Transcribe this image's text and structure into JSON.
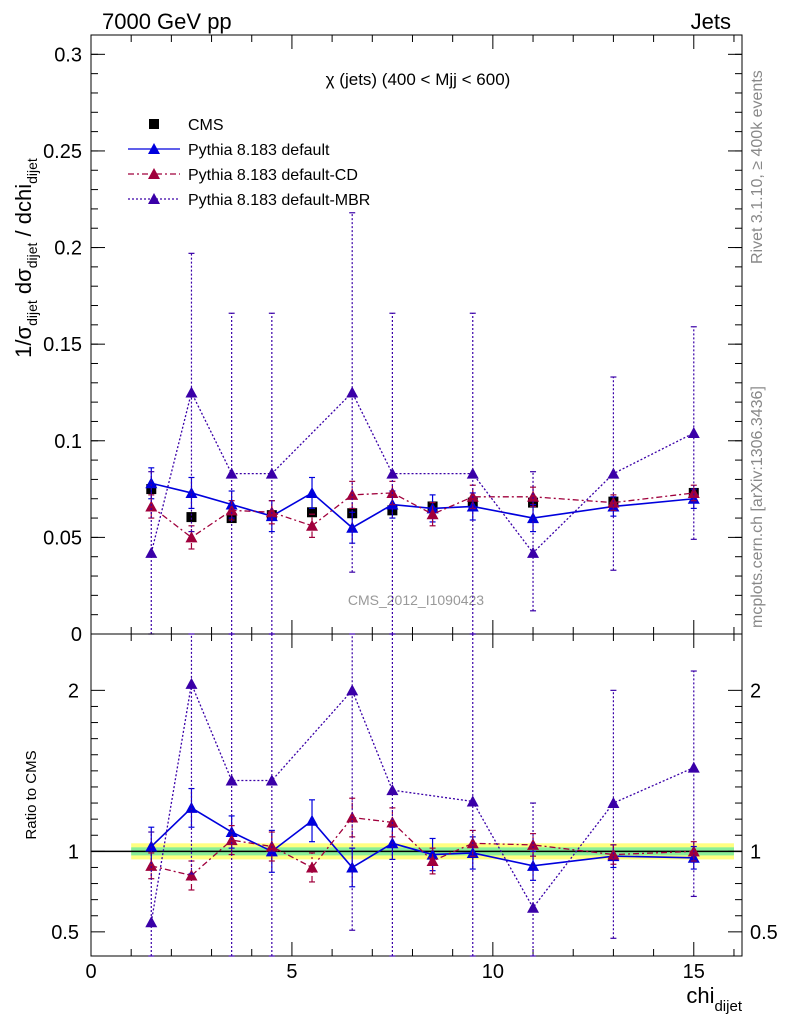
{
  "header": {
    "left": "7000 GeV pp",
    "right": "Jets"
  },
  "side_labels": {
    "rivet": "Rivet 3.1.10, ≥ 400k events",
    "mcplots": "mcplots.cern.ch [arXiv:1306.3436]"
  },
  "watermark": "CMS_2012_I1090423",
  "colors": {
    "cms": "#000000",
    "default": "#0000dd",
    "cd": "#a0003c",
    "mbr": "#3a00a8",
    "band_yellow": "#ffff80",
    "band_green": "#88ee99"
  },
  "chart_data": [
    {
      "type": "scatter",
      "panel": "main",
      "title": "χ (jets) (400 < Mjj <  600)",
      "ylabel": "1/σ_dijet dσ_dijet / dchi_dijet",
      "xlim": [
        0,
        16.2
      ],
      "ylim": [
        0,
        0.31
      ],
      "yticks": [
        0,
        0.05,
        0.1,
        0.15,
        0.2,
        0.25,
        0.3
      ],
      "ytick_labels": [
        "0",
        "0.05",
        "0.1",
        "0.15",
        "0.2",
        "0.25",
        "0.3"
      ],
      "x": [
        1.5,
        2.5,
        3.5,
        4.5,
        5.5,
        6.5,
        7.5,
        8.5,
        9.5,
        11.0,
        13.0,
        15.0
      ],
      "legend": [
        "CMS",
        "Pythia 8.183 default",
        "Pythia 8.183 default-CD",
        "Pythia 8.183 default-MBR"
      ],
      "series": [
        {
          "name": "CMS",
          "key": "cms",
          "marker": "square",
          "line": "none",
          "values": [
            0.075,
            0.0605,
            0.06,
            0.0615,
            0.063,
            0.0625,
            0.064,
            0.066,
            0.068,
            0.068,
            0.0685,
            0.073
          ],
          "errors": [
            0.002,
            0.002,
            0.002,
            0.002,
            0.002,
            0.002,
            0.002,
            0.002,
            0.002,
            0.002,
            0.002,
            0.002
          ]
        },
        {
          "name": "Pythia 8.183 default",
          "key": "default",
          "marker": "triangle",
          "line": "solid",
          "values": [
            0.078,
            0.073,
            0.067,
            0.061,
            0.073,
            0.055,
            0.067,
            0.065,
            0.066,
            0.06,
            0.066,
            0.07
          ],
          "errors": [
            0.008,
            0.008,
            0.007,
            0.008,
            0.008,
            0.008,
            0.007,
            0.007,
            0.007,
            0.007,
            0.005,
            0.005
          ]
        },
        {
          "name": "Pythia 8.183 default-CD",
          "key": "cd",
          "marker": "triangle",
          "line": "dashdot",
          "values": [
            0.066,
            0.05,
            0.064,
            0.063,
            0.056,
            0.072,
            0.073,
            0.062,
            0.071,
            0.071,
            0.068,
            0.073
          ],
          "errors": [
            0.006,
            0.006,
            0.005,
            0.006,
            0.006,
            0.007,
            0.006,
            0.006,
            0.006,
            0.005,
            0.004,
            0.004
          ]
        },
        {
          "name": "Pythia 8.183 default-MBR",
          "key": "mbr",
          "marker": "triangle",
          "line": "dotted",
          "values": [
            0.042,
            0.125,
            0.083,
            0.083,
            null,
            0.125,
            0.083,
            null,
            0.083,
            0.042,
            0.083,
            0.104
          ],
          "err_low": [
            0.042,
            0.072,
            0.083,
            0.083,
            null,
            0.093,
            0.083,
            null,
            0.083,
            0.03,
            0.05,
            0.055
          ],
          "err_high": [
            0.042,
            0.072,
            0.083,
            0.083,
            null,
            0.093,
            0.083,
            null,
            0.083,
            0.042,
            0.05,
            0.055
          ]
        }
      ]
    },
    {
      "type": "scatter",
      "panel": "ratio",
      "ylabel": "Ratio to CMS",
      "xlabel": "chi_dijet",
      "xlim": [
        0,
        16.2
      ],
      "ylim": [
        0.35,
        2.35
      ],
      "yticks": [
        0.5,
        1,
        2
      ],
      "ytick_labels": [
        "0.5",
        "1",
        "2"
      ],
      "xticks": [
        0,
        5,
        10,
        15
      ],
      "xtick_labels": [
        "0",
        "5",
        "10",
        "15"
      ],
      "band": {
        "x_range": [
          1.0,
          16.0
        ],
        "yellow": [
          0.95,
          1.05
        ],
        "green": [
          0.975,
          1.025
        ]
      },
      "x": [
        1.5,
        2.5,
        3.5,
        4.5,
        5.5,
        6.5,
        7.5,
        8.5,
        9.5,
        11.0,
        13.0,
        15.0
      ],
      "series": [
        {
          "name": "Pythia 8.183 default",
          "key": "default",
          "marker": "triangle",
          "line": "solid",
          "values": [
            1.03,
            1.27,
            1.12,
            1.0,
            1.19,
            0.9,
            1.05,
            0.98,
            0.99,
            0.91,
            0.97,
            0.96
          ],
          "errors": [
            0.12,
            0.12,
            0.1,
            0.13,
            0.13,
            0.12,
            0.1,
            0.1,
            0.1,
            0.09,
            0.07,
            0.07
          ]
        },
        {
          "name": "Pythia 8.183 default-CD",
          "key": "cd",
          "marker": "triangle",
          "line": "dashdot",
          "values": [
            0.91,
            0.85,
            1.07,
            1.03,
            0.9,
            1.21,
            1.18,
            0.94,
            1.05,
            1.04,
            0.98,
            1.0
          ],
          "errors": [
            0.08,
            0.09,
            0.09,
            0.09,
            0.09,
            0.12,
            0.09,
            0.08,
            0.08,
            0.07,
            0.06,
            0.06
          ]
        },
        {
          "name": "Pythia 8.183 default-MBR",
          "key": "mbr",
          "marker": "triangle",
          "line": "dotted",
          "values": [
            0.56,
            2.04,
            1.44,
            1.44,
            null,
            2.0,
            1.38,
            null,
            1.31,
            0.65,
            1.3,
            1.52
          ],
          "err_low": [
            0.56,
            1.18,
            1.44,
            1.44,
            null,
            1.49,
            1.38,
            null,
            1.31,
            0.46,
            0.84,
            0.8
          ],
          "err_high": [
            0.56,
            1.18,
            1.44,
            1.44,
            null,
            1.49,
            1.38,
            null,
            1.31,
            0.65,
            0.7,
            0.6
          ]
        }
      ]
    }
  ]
}
